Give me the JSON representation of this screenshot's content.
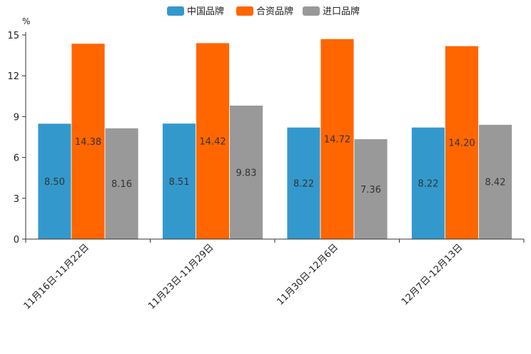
{
  "chart_data": {
    "type": "bar",
    "unit": "%",
    "categories": [
      "11月16日-11月22日",
      "11月23日-11月29日",
      "11月30日-12月6日",
      "12月7日-12月13日"
    ],
    "series": [
      {
        "name": "中国品牌",
        "color": "#3399cc",
        "values": [
          8.5,
          8.51,
          8.22,
          8.22
        ],
        "labels": [
          "8.50",
          "8.51",
          "8.22",
          "8.22"
        ]
      },
      {
        "name": "合资品牌",
        "color": "#ff6600",
        "values": [
          14.38,
          14.42,
          14.72,
          14.2
        ],
        "labels": [
          "14.38",
          "14.42",
          "14.72",
          "14.20"
        ]
      },
      {
        "name": "进口品牌",
        "color": "#999999",
        "values": [
          8.16,
          9.83,
          7.36,
          8.42
        ],
        "labels": [
          "8.16",
          "9.83",
          "7.36",
          "8.42"
        ]
      }
    ],
    "ylim": [
      0,
      15
    ],
    "yticks": [
      "0",
      "3",
      "6",
      "9",
      "12",
      "15"
    ],
    "legend_position": "top-center",
    "grid": false
  }
}
